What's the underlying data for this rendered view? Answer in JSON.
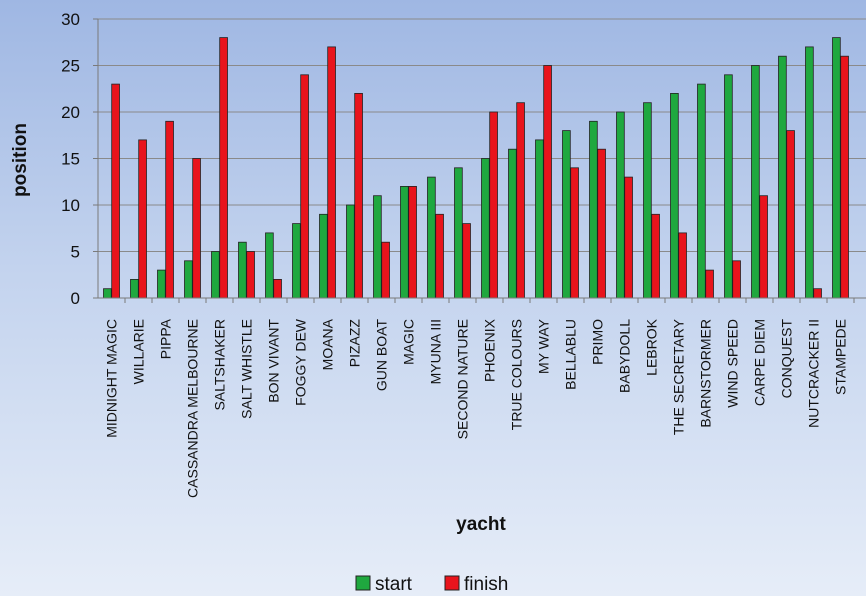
{
  "chart_data": {
    "type": "bar",
    "xlabel": "yacht",
    "ylabel": "position",
    "ylim": [
      0,
      30
    ],
    "yticks": [
      0,
      5,
      10,
      15,
      20,
      25,
      30
    ],
    "grid": true,
    "legend_position": "bottom",
    "categories": [
      "MIDNIGHT MAGIC",
      "WILLARIE",
      "PIPPA",
      "CASSANDRA MELBOURNE",
      "SALTSHAKER",
      "SALT WHISTLE",
      "BON VIVANT",
      "FOGGY DEW",
      "MOANA",
      "PIZAZZ",
      "GUN BOAT",
      "MAGIC",
      "MYUNA III",
      "SECOND NATURE",
      "PHOENIX",
      "TRUE COLOURS",
      "MY WAY",
      "BELLABLU",
      "PRIMO",
      "BABYDOLL",
      "LEBROK",
      "THE SECRETARY",
      "BARNSTORMER",
      "WIND SPEED",
      "CARPE DIEM",
      "CONQUEST",
      "NUTCRACKER II",
      "STAMPEDE"
    ],
    "series": [
      {
        "name": "start",
        "color": "#1fa83f",
        "values": [
          1,
          2,
          3,
          4,
          5,
          6,
          7,
          8,
          9,
          10,
          11,
          12,
          13,
          14,
          15,
          16,
          17,
          18,
          19,
          20,
          21,
          22,
          23,
          24,
          25,
          26,
          27,
          28
        ]
      },
      {
        "name": "finish",
        "color": "#e8141c",
        "values": [
          23,
          17,
          19,
          15,
          28,
          5,
          2,
          24,
          27,
          22,
          6,
          12,
          9,
          8,
          20,
          21,
          25,
          14,
          16,
          13,
          9,
          7,
          3,
          4,
          11,
          18,
          1,
          26
        ]
      }
    ]
  }
}
